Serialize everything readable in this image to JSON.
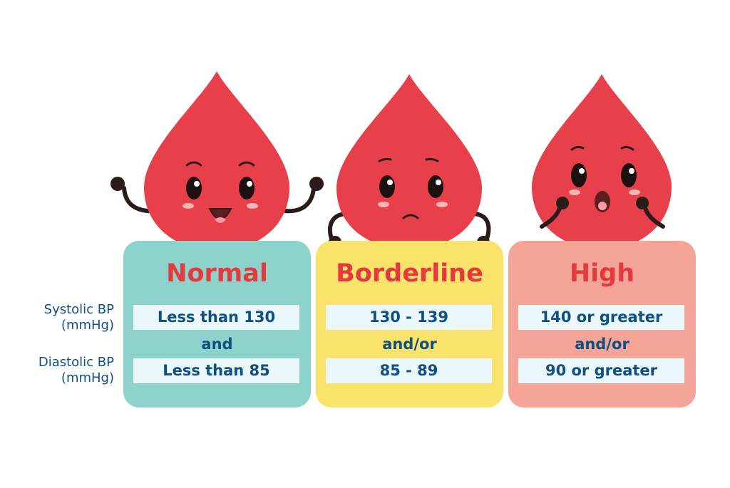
{
  "row_labels": {
    "systolic": "Systolic BP\n(mmHg)",
    "diastolic": "Diastolic BP\n(mmHg)"
  },
  "categories": [
    {
      "title": "Normal",
      "systolic": "Less than 130",
      "connector": "and",
      "diastolic": "Less than 85",
      "card_color": "#8dd3cc",
      "mascot_expression": "happy"
    },
    {
      "title": "Borderline",
      "systolic": "130 - 139",
      "connector": "and/or",
      "diastolic": "85 - 89",
      "card_color": "#f9e36b",
      "mascot_expression": "worried"
    },
    {
      "title": "High",
      "systolic": "140 or greater",
      "connector": "and/or",
      "diastolic": "90 or greater",
      "card_color": "#f4a597",
      "mascot_expression": "shocked"
    }
  ],
  "colors": {
    "drop": "#e8404a",
    "title": "#e5393f",
    "text": "#0f4f82",
    "value_box": "#eaf8fb"
  }
}
